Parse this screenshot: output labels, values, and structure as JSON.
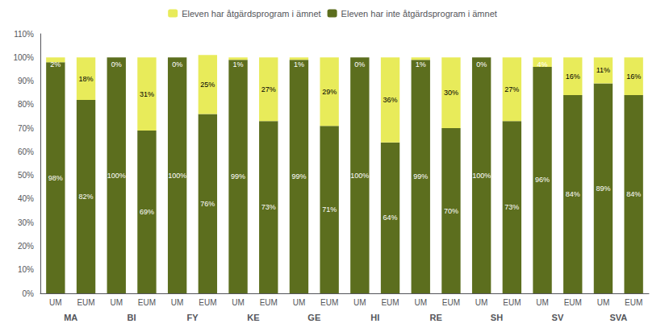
{
  "chart_data": {
    "type": "bar",
    "stacked": true,
    "data_labels": true,
    "grid": false,
    "legend": "top",
    "categories": [
      "UM",
      "EUM",
      "UM",
      "EUM",
      "UM",
      "EUM",
      "UM",
      "EUM",
      "UM",
      "EUM",
      "UM",
      "EUM",
      "UM",
      "EUM",
      "UM",
      "EUM",
      "UM",
      "EUM",
      "UM",
      "EUM"
    ],
    "groups": [
      "MA",
      "BI",
      "FY",
      "KE",
      "GE",
      "HI",
      "RE",
      "SH",
      "SV",
      "SVA"
    ],
    "series": [
      {
        "name": "Eleven har inte åtgärdsprogram i ämnet",
        "color": "#5C6E1E",
        "values": [
          98,
          82,
          100,
          69,
          100,
          76,
          99,
          73,
          99,
          71,
          100,
          64,
          99,
          70,
          100,
          73,
          96,
          84,
          89,
          84
        ],
        "value_labels": [
          "98%",
          "82%",
          "100%",
          "69%",
          "100%",
          "76%",
          "99%",
          "73%",
          "99%",
          "71%",
          "100%",
          "64%",
          "99%",
          "70%",
          "100%",
          "73%",
          "96%",
          "84%",
          "89%",
          "84%"
        ]
      },
      {
        "name": "Eleven har åtgärdsprogram i ämnet",
        "color": "#E8EB5A",
        "values": [
          2,
          18,
          0,
          31,
          0,
          25,
          1,
          27,
          1,
          29,
          0,
          36,
          1,
          30,
          0,
          27,
          4,
          16,
          11,
          16
        ],
        "value_labels": [
          "2%",
          "18%",
          "0%",
          "31%",
          "0%",
          "25%",
          "1%",
          "27%",
          "1%",
          "29%",
          "0%",
          "36%",
          "1%",
          "30%",
          "0%",
          "27%",
          "4%",
          "16%",
          "11%",
          "16%"
        ]
      }
    ],
    "ylim": [
      0,
      110
    ],
    "yticks": [
      {
        "value": 0,
        "label": "0%"
      },
      {
        "value": 10,
        "label": "10%"
      },
      {
        "value": 20,
        "label": "20%"
      },
      {
        "value": 30,
        "label": "30%"
      },
      {
        "value": 40,
        "label": "40%"
      },
      {
        "value": 50,
        "label": "50%"
      },
      {
        "value": 60,
        "label": "60%"
      },
      {
        "value": 70,
        "label": "70%"
      },
      {
        "value": 80,
        "label": "80%"
      },
      {
        "value": 90,
        "label": "90%"
      },
      {
        "value": 100,
        "label": "100%"
      },
      {
        "value": 110,
        "label": "110%"
      }
    ]
  }
}
